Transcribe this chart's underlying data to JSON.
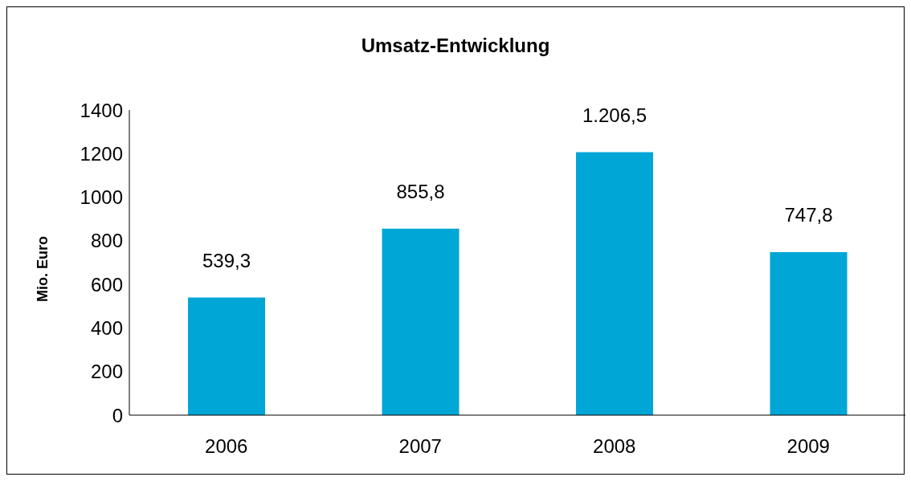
{
  "chart_data": {
    "type": "bar",
    "title": "Umsatz-Entwicklung",
    "ylabel": "Mio. Euro",
    "categories": [
      "2006",
      "2007",
      "2008",
      "2009"
    ],
    "values": [
      539.3,
      855.8,
      1206.5,
      747.8
    ],
    "value_labels": [
      "539,3",
      "855,8",
      "1.206,5",
      "747,8"
    ],
    "color": "#00a6d6",
    "ylim": [
      0,
      1400
    ],
    "yticks": [
      0,
      200,
      400,
      600,
      800,
      1000,
      1200,
      1400
    ],
    "grid": false,
    "legend": false
  }
}
